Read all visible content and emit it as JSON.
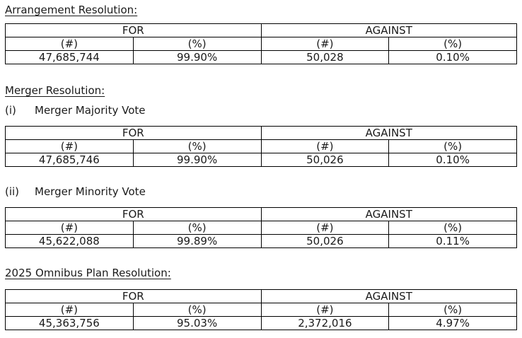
{
  "page": {
    "background": "#ffffff",
    "text_color": "#1a1a1a",
    "table_border_color": "#000000"
  },
  "table_labels": {
    "for": "FOR",
    "against": "AGAINST",
    "count": "(#)",
    "pct": "(%)"
  },
  "sections": {
    "arrangement": {
      "heading": "Arrangement Resolution:",
      "for_count": "47,685,744",
      "for_pct": "99.90%",
      "against_count": "50,028",
      "against_pct": "0.10%"
    },
    "merger": {
      "heading": "Merger Resolution:",
      "majority": {
        "marker": "(i)",
        "label": "Merger Majority Vote",
        "for_count": "47,685,746",
        "for_pct": "99.90%",
        "against_count": "50,026",
        "against_pct": "0.10%"
      },
      "minority": {
        "marker": "(ii)",
        "label": "Merger Minority Vote",
        "for_count": "45,622,088",
        "for_pct": "99.89%",
        "against_count": "50,026",
        "against_pct": "0.11%"
      }
    },
    "omnibus": {
      "heading": "2025 Omnibus Plan Resolution:",
      "for_count": "45,363,756",
      "for_pct": "95.03%",
      "against_count": "2,372,016",
      "against_pct": "4.97%"
    }
  }
}
